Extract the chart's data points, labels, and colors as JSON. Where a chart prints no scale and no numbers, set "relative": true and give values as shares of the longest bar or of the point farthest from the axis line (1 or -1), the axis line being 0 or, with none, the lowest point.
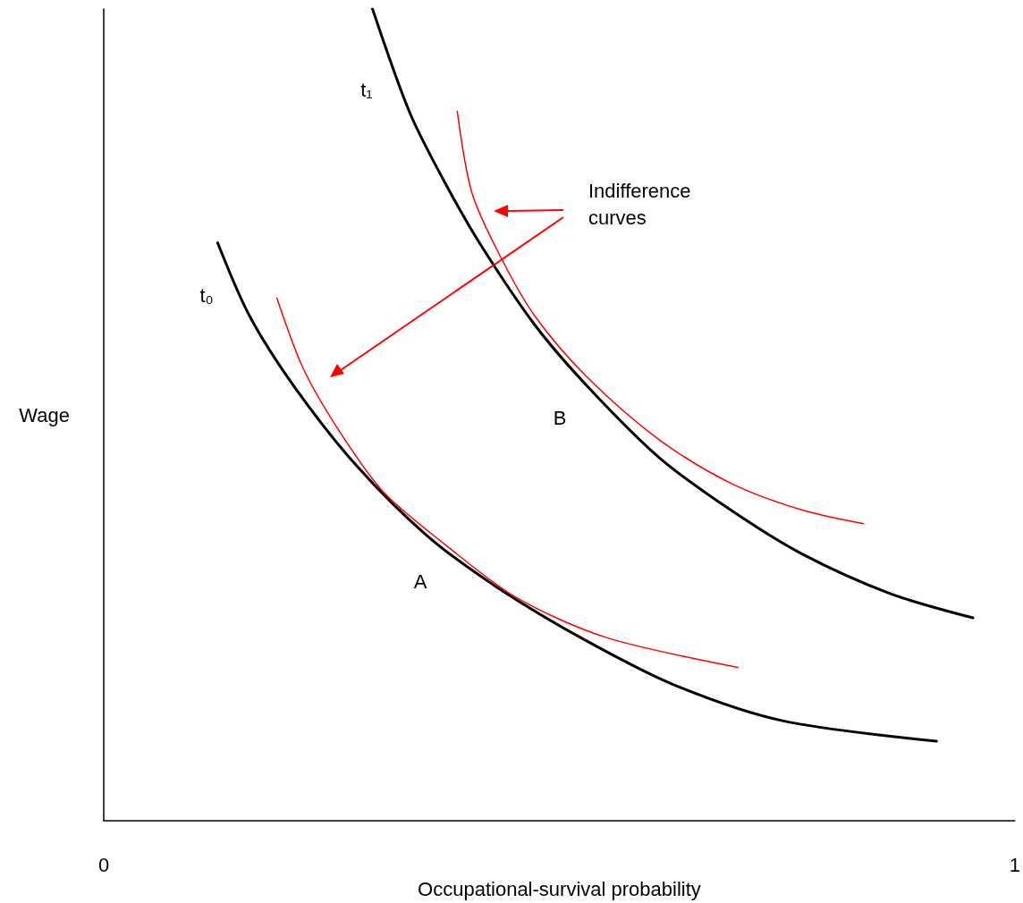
{
  "chart_data": {
    "type": "line",
    "relative": true,
    "xlabel": "Occupational-survival probability",
    "ylabel": "Wage",
    "xlim": [
      0,
      1
    ],
    "xticks": [
      0,
      1
    ],
    "grid": false,
    "marker": "none",
    "line_style": "solid",
    "series": [
      {
        "color": "#000000",
        "x": [
          0.295,
          0.336,
          0.375,
          0.414,
          0.473,
          0.531,
          0.609,
          0.688,
          0.766,
          0.863,
          0.954
        ],
        "values": [
          1.0,
          0.872,
          0.785,
          0.709,
          0.611,
          0.535,
          0.448,
          0.383,
          0.329,
          0.28,
          0.25
        ]
      },
      {
        "color": "#000000",
        "x": [
          0.125,
          0.16,
          0.209,
          0.277,
          0.355,
          0.434,
          0.531,
          0.629,
          0.746,
          0.914
        ],
        "values": [
          0.712,
          0.622,
          0.535,
          0.438,
          0.351,
          0.286,
          0.221,
          0.166,
          0.123,
          0.098
        ]
      },
      {
        "color": "#ff0000",
        "x": [
          0.388,
          0.404,
          0.434,
          0.473,
          0.531,
          0.609,
          0.688,
          0.766,
          0.834
        ],
        "values": [
          0.874,
          0.774,
          0.698,
          0.622,
          0.546,
          0.47,
          0.416,
          0.383,
          0.366
        ]
      },
      {
        "color": "#ff0000",
        "x": [
          0.19,
          0.219,
          0.258,
          0.307,
          0.375,
          0.453,
          0.551,
          0.696
        ],
        "values": [
          0.644,
          0.557,
          0.481,
          0.405,
          0.34,
          0.275,
          0.226,
          0.189
        ]
      }
    ],
    "annotations": [
      "t₁",
      "t₀",
      "B",
      "A",
      "Indifference curves"
    ]
  }
}
